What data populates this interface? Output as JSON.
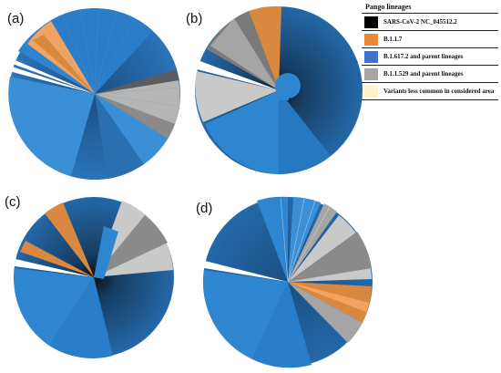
{
  "panels": [
    {
      "label": "(a)"
    },
    {
      "label": "(b)"
    },
    {
      "label": "(c)"
    },
    {
      "label": "(d)"
    }
  ],
  "legend": {
    "title": "Pango lineages",
    "items": [
      {
        "label": "SARS-CoV-2 NC_045512.2",
        "color": "#000000"
      },
      {
        "label": "B.1.1.7",
        "color": "#e8893a"
      },
      {
        "label": "B.1.617.2 and parent lineages",
        "color": "#4472c4"
      },
      {
        "label": "B.1.1.529 and parent lineages",
        "color": "#a5a5a5"
      },
      {
        "label": "Variants less common in considered area",
        "color": "#fff2cc"
      }
    ]
  },
  "colors": {
    "dark_blue": "#1f5f9a",
    "mid_blue": "#2e86d0",
    "orange": "#f0a460",
    "grey": "#b5b5b5",
    "dark_grey": "#7a7a7a"
  }
}
